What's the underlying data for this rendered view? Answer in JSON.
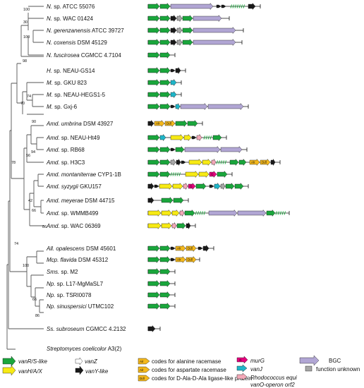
{
  "colors": {
    "vanRS": "#1aa63c",
    "vanHAX": "#f7ea14",
    "vanZ": "#ffffff",
    "vanY": "#1a1a1a",
    "alr": "#f4b81c",
    "murG": "#e5007d",
    "vanJ": "#1fb6c9",
    "rhodo": "#f3a8b8",
    "bgc": "#b1a6d4",
    "unknown": "#a7a7a7",
    "tree": "#555555"
  },
  "taxa": [
    {
      "i": "N.",
      "r": " sp. ATCC 55076"
    },
    {
      "i": "N.",
      "r": " sp. WAC 01424"
    },
    {
      "i": "N. gerenzanensis",
      "r": " ATCC 39727"
    },
    {
      "i": "N. coxensis",
      "r": " DSM 45129"
    },
    {
      "i": "N. fuscirosea",
      "r": " CGMCC 4.7104"
    },
    {
      "i": "H.",
      "r": " sp. NEAU-GS14"
    },
    {
      "i": "M.",
      "r": " sp. GKU 823"
    },
    {
      "i": "M.",
      "r": " sp. NEAU-HEGS1-5"
    },
    {
      "i": "M.",
      "r": " sp. Gxj-6"
    },
    {
      "i": "Amd. umbrina",
      "r": " DSM 43927"
    },
    {
      "i": "Amd.",
      "r": " sp. NEAU-Ht49"
    },
    {
      "i": "Amd.",
      "r": " sp. RB68"
    },
    {
      "i": "Amd.",
      "r": " sp. H3C3"
    },
    {
      "i": "Amd. montaniterrae",
      "r": " CYP1-1B"
    },
    {
      "i": "Amd. syzygii",
      "r": " GKU157"
    },
    {
      "i": "Amd. meyerae",
      "r": "  DSM 44715"
    },
    {
      "i": "Amd.",
      "r": " sp. WMMB499"
    },
    {
      "i": "Amd.",
      "r": " sp. WAC 06369"
    },
    {
      "i": "All. opalescens",
      "r": " DSM 45601"
    },
    {
      "i": "Mcp. flavida",
      "r": " DSM 45312"
    },
    {
      "i": "Sms.",
      "r": " sp. M2"
    },
    {
      "i": "Np.",
      "r": " sp. L17-MgMaSL7"
    },
    {
      "i": "Np.",
      "r": " sp. TSRI0078"
    },
    {
      "i": "Np. sinuspersici",
      "r": " UTMC102"
    },
    {
      "i": "Ss. subroseum",
      "r": " CGMCC 4.2132"
    },
    {
      "i": "Streptomyces coelicolor",
      "r": " A3(2)"
    }
  ],
  "bootstrap": [
    "100",
    "30",
    "100",
    "98",
    "74",
    "90",
    "70",
    "94",
    "56",
    "42",
    "66",
    "86",
    "78",
    "100",
    "66",
    "86",
    "74"
  ],
  "tags": {
    "alr": "Alr",
    "ddl": "Ddl",
    "g": "G"
  },
  "legend": {
    "vanRS": "vanR/S-like",
    "vanHAX": "vanH/A/X",
    "vanZ": "vanZ",
    "vanY": "vanY-like",
    "alr": "codes for alanine racemase",
    "asp": "codes for aspartate racemase",
    "ddl": "codes for D-Ala-D-Ala ligase-like protein",
    "murG": "murG",
    "vanJ": "vanJ",
    "rhodo_1": "Rhodococcus equi",
    "rhodo_2": "vanO-operon orf2",
    "bgc": "BGC",
    "unknown": "function unknown"
  }
}
